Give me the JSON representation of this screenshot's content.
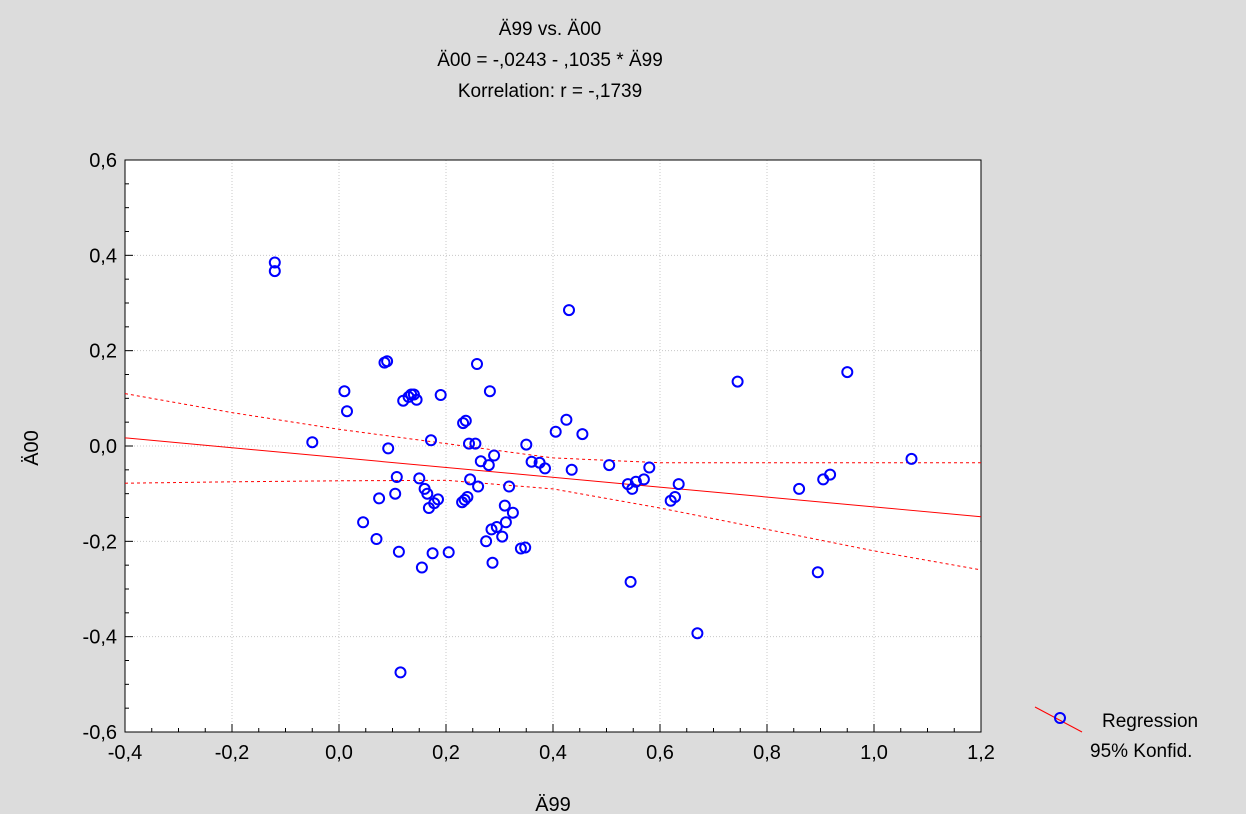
{
  "chart_data": {
    "type": "scatter",
    "title": "Ä99 vs. Ä00",
    "subtitle": "Ä00 = -,0243 - ,1035 * Ä99",
    "correlation_text": "Korrelation: r = -,1739",
    "xlabel": "Ä99",
    "ylabel": "Ä00",
    "xlim": [
      -0.4,
      1.2
    ],
    "ylim": [
      -0.6,
      0.6
    ],
    "x_ticks": [
      -0.4,
      -0.2,
      0.0,
      0.2,
      0.4,
      0.6,
      0.8,
      1.0,
      1.2
    ],
    "x_tick_labels": [
      "-0,4",
      "-0,2",
      "0,0",
      "0,2",
      "0,4",
      "0,6",
      "0,8",
      "1,0",
      "1,2"
    ],
    "y_ticks": [
      0.6,
      0.4,
      0.2,
      0.0,
      -0.2,
      -0.4,
      -0.6
    ],
    "y_tick_labels": [
      "0,6",
      "0,4",
      "0,2",
      "0,0",
      "-0,2",
      "-0,4",
      "-0,6"
    ],
    "grid": true,
    "legend_placement": "bottom-right, outside plot",
    "legend": [
      "Regression",
      "95% Konfid."
    ],
    "colors": {
      "points": "#0000ff",
      "regression": "#ff0000",
      "confidence": "#ff0000",
      "background": "#dcdcdc",
      "plot_area": "#ffffff"
    },
    "regression": {
      "intercept": -0.0243,
      "slope": -0.1035
    },
    "confidence_upper": {
      "x": [
        -0.4,
        -0.2,
        0.0,
        0.2,
        0.4,
        0.6,
        0.8,
        1.0,
        1.2
      ],
      "y": [
        0.11,
        0.07,
        0.035,
        0.005,
        -0.025,
        -0.035,
        -0.035,
        -0.035,
        -0.035
      ]
    },
    "confidence_lower": {
      "x": [
        -0.4,
        -0.2,
        0.0,
        0.2,
        0.4,
        0.6,
        0.8,
        1.0,
        1.2
      ],
      "y": [
        -0.078,
        -0.075,
        -0.073,
        -0.072,
        -0.09,
        -0.13,
        -0.175,
        -0.22,
        -0.26
      ]
    },
    "points": [
      [
        -0.12,
        0.385
      ],
      [
        -0.12,
        0.367
      ],
      [
        -0.05,
        0.008
      ],
      [
        0.01,
        0.115
      ],
      [
        0.015,
        0.073
      ],
      [
        0.045,
        -0.16
      ],
      [
        0.07,
        -0.195
      ],
      [
        0.075,
        -0.11
      ],
      [
        0.085,
        0.175
      ],
      [
        0.09,
        0.178
      ],
      [
        0.092,
        -0.005
      ],
      [
        0.105,
        -0.1
      ],
      [
        0.108,
        -0.065
      ],
      [
        0.112,
        -0.222
      ],
      [
        0.115,
        -0.475
      ],
      [
        0.12,
        0.095
      ],
      [
        0.13,
        0.103
      ],
      [
        0.135,
        0.108
      ],
      [
        0.14,
        0.108
      ],
      [
        0.145,
        0.097
      ],
      [
        0.15,
        -0.068
      ],
      [
        0.155,
        -0.255
      ],
      [
        0.16,
        -0.09
      ],
      [
        0.165,
        -0.1
      ],
      [
        0.168,
        -0.13
      ],
      [
        0.172,
        0.012
      ],
      [
        0.175,
        -0.225
      ],
      [
        0.178,
        -0.12
      ],
      [
        0.185,
        -0.112
      ],
      [
        0.19,
        0.107
      ],
      [
        0.205,
        -0.223
      ],
      [
        0.23,
        -0.118
      ],
      [
        0.232,
        0.048
      ],
      [
        0.235,
        -0.113
      ],
      [
        0.237,
        0.053
      ],
      [
        0.24,
        -0.107
      ],
      [
        0.243,
        0.005
      ],
      [
        0.245,
        -0.07
      ],
      [
        0.255,
        0.005
      ],
      [
        0.258,
        0.172
      ],
      [
        0.26,
        -0.085
      ],
      [
        0.265,
        -0.032
      ],
      [
        0.275,
        -0.2
      ],
      [
        0.28,
        -0.04
      ],
      [
        0.282,
        0.115
      ],
      [
        0.285,
        -0.175
      ],
      [
        0.287,
        -0.245
      ],
      [
        0.29,
        -0.02
      ],
      [
        0.295,
        -0.17
      ],
      [
        0.305,
        -0.19
      ],
      [
        0.31,
        -0.125
      ],
      [
        0.312,
        -0.16
      ],
      [
        0.318,
        -0.085
      ],
      [
        0.325,
        -0.14
      ],
      [
        0.34,
        -0.215
      ],
      [
        0.348,
        -0.213
      ],
      [
        0.35,
        0.003
      ],
      [
        0.36,
        -0.033
      ],
      [
        0.375,
        -0.035
      ],
      [
        0.385,
        -0.047
      ],
      [
        0.405,
        0.03
      ],
      [
        0.425,
        0.055
      ],
      [
        0.43,
        0.285
      ],
      [
        0.435,
        -0.05
      ],
      [
        0.455,
        0.025
      ],
      [
        0.505,
        -0.04
      ],
      [
        0.54,
        -0.08
      ],
      [
        0.545,
        -0.285
      ],
      [
        0.548,
        -0.09
      ],
      [
        0.555,
        -0.075
      ],
      [
        0.57,
        -0.07
      ],
      [
        0.58,
        -0.045
      ],
      [
        0.62,
        -0.115
      ],
      [
        0.628,
        -0.107
      ],
      [
        0.635,
        -0.08
      ],
      [
        0.67,
        -0.393
      ],
      [
        0.745,
        0.135
      ],
      [
        0.86,
        -0.09
      ],
      [
        0.895,
        -0.265
      ],
      [
        0.905,
        -0.07
      ],
      [
        0.918,
        -0.06
      ],
      [
        0.95,
        0.155
      ],
      [
        1.07,
        -0.027
      ]
    ]
  }
}
